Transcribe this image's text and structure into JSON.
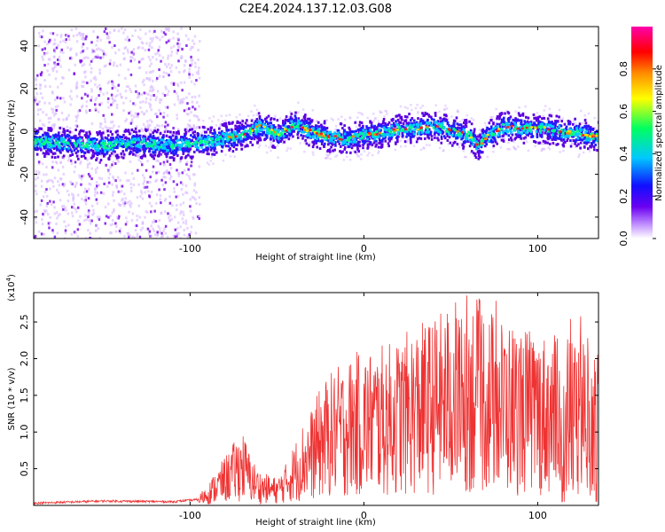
{
  "title": "C2E4.2024.137.12.03.G08",
  "chart_data": [
    {
      "type": "heatmap",
      "title": "",
      "xlabel": "Height of straight line (km)",
      "ylabel": "Frequency (Hz)",
      "xlim": [
        -190,
        135
      ],
      "ylim": [
        -50,
        49
      ],
      "xticks": [
        -100,
        0,
        100
      ],
      "yticks": [
        -40,
        -20,
        0,
        20,
        40
      ],
      "colorbar": {
        "label": "Normalized spectral amplitude",
        "range": [
          0,
          1
        ],
        "ticks": [
          "0.0",
          "0.2",
          "0.4",
          "0.6",
          "0.8"
        ],
        "colors": [
          "#ffffff",
          "#c79bff",
          "#6a00f0",
          "#1010ff",
          "#00c8ff",
          "#00ff60",
          "#ffff00",
          "#ff8c00",
          "#ff0000",
          "#ff00aa"
        ]
      },
      "ridge": {
        "x": [
          -190,
          -170,
          -150,
          -130,
          -110,
          -90,
          -70,
          -60,
          -50,
          -40,
          -30,
          -20,
          -10,
          0,
          10,
          20,
          30,
          40,
          50,
          60,
          65,
          70,
          80,
          90,
          100,
          110,
          120,
          135
        ],
        "y": [
          -4,
          -5,
          -6,
          -5,
          -6,
          -4,
          -1,
          3,
          -1,
          4,
          0,
          -2,
          -3,
          -1,
          0,
          2,
          2,
          3,
          1,
          -1,
          -6,
          -2,
          3,
          2,
          2,
          1,
          0,
          -2
        ]
      }
    },
    {
      "type": "line",
      "title": "",
      "xlabel": "Height of straight line (km)",
      "ylabel": "SNR (10 * v/v)",
      "multiplier": "(x10",
      "multiplier_exp": "4",
      "multiplier_close": ")",
      "color": "#ee3333",
      "xlim": [
        -190,
        135
      ],
      "ylim": [
        0,
        2.9
      ],
      "xticks": [
        -100,
        0,
        100
      ],
      "yticks": [
        0.5,
        1.0,
        1.5,
        2.0,
        2.5
      ],
      "ytick_labels": [
        "0.5",
        "1.0",
        "1.5",
        "2.0",
        "2.5"
      ],
      "envelope": {
        "x": [
          -190,
          -150,
          -110,
          -95,
          -90,
          -80,
          -70,
          -65,
          -60,
          -55,
          -50,
          -45,
          -40,
          -35,
          -30,
          -25,
          -20,
          -15,
          -10,
          -5,
          0,
          10,
          20,
          30,
          40,
          50,
          60,
          65,
          70,
          75,
          80,
          90,
          100,
          110,
          115,
          120,
          125,
          130,
          135
        ],
        "y": [
          0.03,
          0.06,
          0.05,
          0.08,
          0.15,
          0.35,
          0.55,
          0.35,
          0.25,
          0.22,
          0.2,
          0.3,
          0.45,
          0.6,
          0.7,
          0.85,
          0.95,
          1.0,
          1.05,
          1.1,
          1.12,
          1.15,
          1.2,
          1.3,
          1.35,
          1.45,
          1.55,
          1.5,
          1.45,
          1.4,
          1.35,
          1.3,
          1.25,
          1.22,
          1.2,
          1.18,
          1.2,
          1.25,
          1.2
        ]
      }
    }
  ]
}
